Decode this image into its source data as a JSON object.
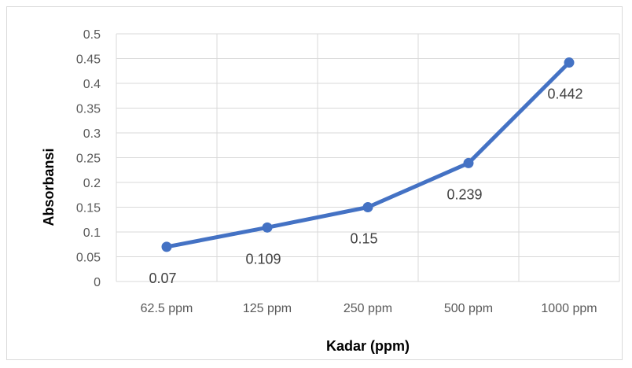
{
  "chart_data": {
    "type": "line",
    "title": "",
    "xlabel": "Kadar (ppm)",
    "ylabel": "Absorbansi",
    "categories": [
      "62.5 ppm",
      "125 ppm",
      "250 ppm",
      "500 ppm",
      "1000 ppm"
    ],
    "series": [
      {
        "values": [
          0.07,
          0.109,
          0.15,
          0.239,
          0.442
        ],
        "color": "#4472c4"
      }
    ],
    "data_labels": [
      "0.07",
      "0.109",
      "0.15",
      "0.239",
      "0.442"
    ],
    "ylim": [
      0,
      0.5
    ],
    "yticks": [
      "0",
      "0.05",
      "0.1",
      "0.15",
      "0.2",
      "0.25",
      "0.3",
      "0.35",
      "0.4",
      "0.45",
      "0.5"
    ],
    "grid": true,
    "legend": "none"
  }
}
